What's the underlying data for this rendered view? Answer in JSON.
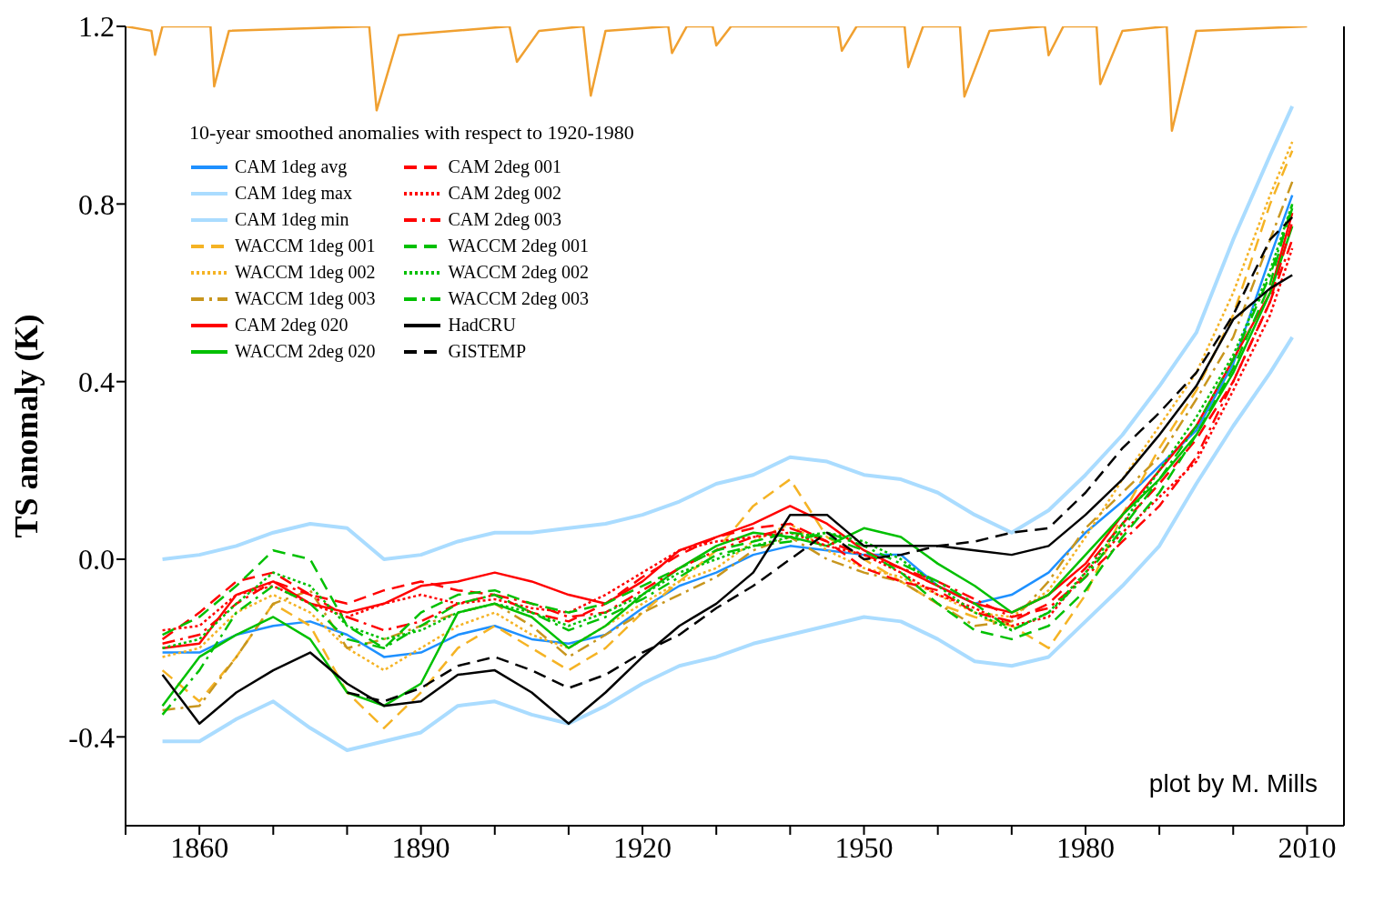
{
  "chart_data": {
    "type": "line",
    "xlabel": null,
    "ylabel": "TS anomaly (K)",
    "legend_title": "10-year smoothed anomalies with respect to 1920-1980",
    "legend": "top left",
    "annotations": [
      "plot by M. Mills"
    ],
    "x": [
      1855,
      1860,
      1865,
      1870,
      1875,
      1880,
      1885,
      1890,
      1895,
      1900,
      1905,
      1910,
      1915,
      1920,
      1925,
      1930,
      1935,
      1940,
      1945,
      1950,
      1955,
      1960,
      1965,
      1970,
      1975,
      1980,
      1985,
      1990,
      1995,
      2000,
      2005,
      2008
    ],
    "xlim": [
      1850,
      2015
    ],
    "xticks": [
      {
        "value": 1850,
        "label": null
      },
      1860,
      {
        "value": 1870,
        "label": null
      },
      {
        "value": 1880,
        "label": null
      },
      1890,
      {
        "value": 1900,
        "label": null
      },
      {
        "value": 1910,
        "label": null
      },
      1920,
      {
        "value": 1930,
        "label": null
      },
      {
        "value": 1940,
        "label": null
      },
      1950,
      {
        "value": 1960,
        "label": null
      },
      {
        "value": 1970,
        "label": null
      },
      1980,
      {
        "value": 1990,
        "label": null
      },
      {
        "value": 2000,
        "label": null
      },
      2010
    ],
    "ylim": [
      -0.6,
      1.2
    ],
    "yticks": [
      1.2,
      0.8,
      0.4,
      {
        "value": 0,
        "label": "0.0"
      },
      -0.4
    ],
    "series": [
      {
        "name": "CAM 1deg avg",
        "color": "#1e90ff",
        "line_style": "solid",
        "values": [
          -0.21,
          -0.21,
          -0.17,
          -0.15,
          -0.14,
          -0.17,
          -0.22,
          -0.21,
          -0.17,
          -0.15,
          -0.18,
          -0.19,
          -0.17,
          -0.11,
          -0.06,
          -0.03,
          0.01,
          0.03,
          0.02,
          0.01,
          0.01,
          -0.06,
          -0.1,
          -0.08,
          -0.03,
          0.06,
          0.13,
          0.21,
          0.29,
          0.44,
          0.68,
          0.82
        ]
      },
      {
        "name": "CAM 1deg max",
        "color": "#aadcff",
        "line_style": "solid",
        "values": [
          -0.41,
          -0.41,
          -0.36,
          -0.32,
          -0.38,
          -0.43,
          -0.41,
          -0.39,
          -0.33,
          -0.32,
          -0.35,
          -0.37,
          -0.33,
          -0.28,
          -0.24,
          -0.22,
          -0.19,
          -0.17,
          -0.15,
          -0.13,
          -0.14,
          -0.18,
          -0.23,
          -0.24,
          -0.22,
          -0.14,
          -0.06,
          0.03,
          0.17,
          0.3,
          0.42,
          0.5
        ]
      },
      {
        "name": "CAM 1deg min",
        "color": "#aadcff",
        "line_style": "solid",
        "values": [
          0,
          0.01,
          0.03,
          0.06,
          0.08,
          0.07,
          0,
          0.01,
          0.04,
          0.06,
          0.06,
          0.07,
          0.08,
          0.1,
          0.13,
          0.17,
          0.19,
          0.23,
          0.22,
          0.19,
          0.18,
          0.15,
          0.1,
          0.06,
          0.11,
          0.19,
          0.28,
          0.39,
          0.51,
          0.72,
          0.91,
          1.02
        ]
      },
      {
        "name": "WACCM 1deg 001",
        "color": "#f5b324",
        "line_style": "dashed",
        "values": [
          -0.25,
          -0.32,
          -0.22,
          -0.1,
          -0.15,
          -0.3,
          -0.38,
          -0.3,
          -0.2,
          -0.15,
          -0.2,
          -0.25,
          -0.2,
          -0.12,
          -0.05,
          0.02,
          0.12,
          0.18,
          0.05,
          0,
          -0.05,
          -0.1,
          -0.13,
          -0.15,
          -0.2,
          -0.08,
          0.1,
          0.25,
          0.38,
          0.55,
          0.8,
          0.92
        ]
      },
      {
        "name": "WACCM 1deg 002",
        "color": "#f5b324",
        "line_style": "dotted",
        "values": [
          -0.22,
          -0.2,
          -0.12,
          -0.08,
          -0.12,
          -0.2,
          -0.25,
          -0.2,
          -0.15,
          -0.12,
          -0.17,
          -0.2,
          -0.15,
          -0.1,
          -0.05,
          -0.02,
          0.04,
          0.08,
          0.02,
          -0.02,
          -0.04,
          -0.08,
          -0.12,
          -0.13,
          -0.07,
          0.05,
          0.18,
          0.3,
          0.42,
          0.6,
          0.82,
          0.94
        ]
      },
      {
        "name": "WACCM 1deg 003",
        "color": "#c8961e",
        "line_style": "dashdot",
        "values": [
          -0.34,
          -0.33,
          -0.22,
          -0.1,
          -0.07,
          -0.2,
          -0.18,
          -0.15,
          -0.12,
          -0.1,
          -0.15,
          -0.22,
          -0.17,
          -0.12,
          -0.08,
          -0.04,
          0.02,
          0.05,
          0,
          -0.03,
          -0.05,
          -0.1,
          -0.15,
          -0.14,
          -0.05,
          0.07,
          0.15,
          0.23,
          0.36,
          0.5,
          0.72,
          0.85
        ]
      },
      {
        "name": "CAM 2deg 020",
        "color": "#ff0000",
        "line_style": "solid",
        "values": [
          -0.2,
          -0.19,
          -0.08,
          -0.05,
          -0.1,
          -0.12,
          -0.1,
          -0.06,
          -0.05,
          -0.03,
          -0.05,
          -0.08,
          -0.1,
          -0.05,
          0.02,
          0.05,
          0.08,
          0.12,
          0.08,
          0.02,
          -0.02,
          -0.06,
          -0.1,
          -0.12,
          -0.08,
          -0.01,
          0.1,
          0.2,
          0.3,
          0.45,
          0.6,
          0.78
        ]
      },
      {
        "name": "WACCM 2deg 020",
        "color": "#00c000",
        "line_style": "solid",
        "values": [
          -0.33,
          -0.22,
          -0.17,
          -0.13,
          -0.18,
          -0.3,
          -0.33,
          -0.28,
          -0.12,
          -0.1,
          -0.13,
          -0.2,
          -0.15,
          -0.08,
          -0.02,
          0.03,
          0.06,
          0.05,
          0.03,
          0.07,
          0.05,
          -0.01,
          -0.06,
          -0.12,
          -0.08,
          0.01,
          0.1,
          0.18,
          0.28,
          0.42,
          0.6,
          0.75
        ]
      },
      {
        "name": "CAM 2deg 001",
        "color": "#ff0000",
        "line_style": "dashed",
        "values": [
          -0.18,
          -0.12,
          -0.05,
          -0.03,
          -0.08,
          -0.1,
          -0.07,
          -0.05,
          -0.07,
          -0.08,
          -0.12,
          -0.14,
          -0.1,
          -0.04,
          0.01,
          0.05,
          0.07,
          0.08,
          0.04,
          -0.02,
          -0.05,
          -0.07,
          -0.12,
          -0.14,
          -0.1,
          -0.02,
          0.08,
          0.17,
          0.27,
          0.4,
          0.58,
          0.76
        ]
      },
      {
        "name": "CAM 2deg 002",
        "color": "#ff0000",
        "line_style": "dotted",
        "values": [
          -0.16,
          -0.15,
          -0.08,
          -0.06,
          -0.1,
          -0.13,
          -0.1,
          -0.08,
          -0.1,
          -0.09,
          -0.11,
          -0.12,
          -0.08,
          -0.03,
          0.02,
          0.04,
          0.05,
          0.06,
          0.03,
          0.01,
          -0.03,
          -0.08,
          -0.11,
          -0.15,
          -0.13,
          -0.03,
          0.06,
          0.14,
          0.22,
          0.38,
          0.55,
          0.7
        ]
      },
      {
        "name": "CAM 2deg 003",
        "color": "#ff0000",
        "line_style": "dashdot",
        "values": [
          -0.19,
          -0.17,
          -0.1,
          -0.05,
          -0.08,
          -0.13,
          -0.16,
          -0.14,
          -0.1,
          -0.08,
          -0.1,
          -0.13,
          -0.12,
          -0.07,
          -0.02,
          0.02,
          0.05,
          0.07,
          0.04,
          0.01,
          -0.02,
          -0.05,
          -0.09,
          -0.13,
          -0.11,
          -0.04,
          0.04,
          0.12,
          0.23,
          0.4,
          0.58,
          0.72
        ]
      },
      {
        "name": "WACCM 2deg 001",
        "color": "#00c000",
        "line_style": "dashed",
        "values": [
          -0.17,
          -0.13,
          -0.06,
          0.02,
          0,
          -0.15,
          -0.2,
          -0.12,
          -0.08,
          -0.07,
          -0.1,
          -0.12,
          -0.1,
          -0.06,
          -0.02,
          0.02,
          0.04,
          0.06,
          0.05,
          0.02,
          -0.03,
          -0.1,
          -0.16,
          -0.18,
          -0.15,
          -0.07,
          0.05,
          0.15,
          0.28,
          0.43,
          0.62,
          0.8
        ]
      },
      {
        "name": "WACCM 2deg 002",
        "color": "#00c000",
        "line_style": "dotted",
        "values": [
          -0.2,
          -0.18,
          -0.1,
          -0.03,
          -0.06,
          -0.15,
          -0.18,
          -0.16,
          -0.12,
          -0.1,
          -0.12,
          -0.15,
          -0.12,
          -0.08,
          -0.03,
          0,
          0.03,
          0.05,
          0.06,
          0.04,
          0,
          -0.06,
          -0.12,
          -0.16,
          -0.12,
          -0.03,
          0.08,
          0.2,
          0.32,
          0.46,
          0.65,
          0.8
        ]
      },
      {
        "name": "WACCM 2deg 003",
        "color": "#00c000",
        "line_style": "dashdot",
        "values": [
          -0.35,
          -0.25,
          -0.12,
          -0.06,
          -0.1,
          -0.18,
          -0.2,
          -0.15,
          -0.1,
          -0.08,
          -0.12,
          -0.16,
          -0.13,
          -0.09,
          -0.04,
          0.01,
          0.03,
          0.04,
          0.06,
          0.03,
          -0.01,
          -0.05,
          -0.1,
          -0.16,
          -0.12,
          -0.04,
          0.07,
          0.18,
          0.3,
          0.45,
          0.64,
          0.79
        ]
      },
      {
        "name": "HadCRU",
        "color": "#000000",
        "line_style": "solid",
        "values": [
          -0.26,
          -0.37,
          -0.3,
          -0.25,
          -0.21,
          -0.28,
          -0.33,
          -0.32,
          -0.26,
          -0.25,
          -0.3,
          -0.37,
          -0.3,
          -0.22,
          -0.15,
          -0.1,
          -0.03,
          0.1,
          0.1,
          0.03,
          0.03,
          0.03,
          0.02,
          0.01,
          0.03,
          0.1,
          0.18,
          0.28,
          0.39,
          0.54,
          0.61,
          0.64
        ]
      },
      {
        "name": "GISTEMP",
        "color": "#000000",
        "line_style": "dashed",
        "values": [
          null,
          null,
          null,
          null,
          null,
          -0.3,
          -0.32,
          -0.29,
          -0.24,
          -0.22,
          -0.25,
          -0.29,
          -0.26,
          -0.21,
          -0.17,
          -0.11,
          -0.06,
          0,
          0.06,
          0,
          0.01,
          0.03,
          0.04,
          0.06,
          0.07,
          0.15,
          0.25,
          0.33,
          0.42,
          0.55,
          0.72,
          0.77
        ]
      },
      {
        "color": "#f0a030",
        "line_style": "solid",
        "x": [
          1850,
          1853.5,
          1854,
          1855,
          1861.5,
          1862,
          1864,
          1883,
          1884,
          1887,
          1902,
          1903,
          1906,
          1912,
          1913,
          1915,
          1923.5,
          1924,
          1926,
          1929.5,
          1930,
          1932,
          1946.5,
          1947,
          1949,
          1955.5,
          1956,
          1958,
          1963,
          1963.6,
          1967,
          1974.5,
          1975,
          1977,
          1981.5,
          1982,
          1985,
          1991,
          1991.7,
          1995,
          2010
        ],
        "values": [
          1.2,
          1.19,
          1.136,
          1.2,
          1.2,
          1.065,
          1.19,
          1.2,
          1.011,
          1.18,
          1.2,
          1.12,
          1.19,
          1.2,
          1.044,
          1.19,
          1.2,
          1.14,
          1.2,
          1.2,
          1.157,
          1.2,
          1.2,
          1.145,
          1.2,
          1.2,
          1.108,
          1.2,
          1.2,
          1.042,
          1.19,
          1.2,
          1.135,
          1.2,
          1.2,
          1.07,
          1.19,
          1.2,
          0.965,
          1.19,
          1.2
        ]
      }
    ]
  }
}
